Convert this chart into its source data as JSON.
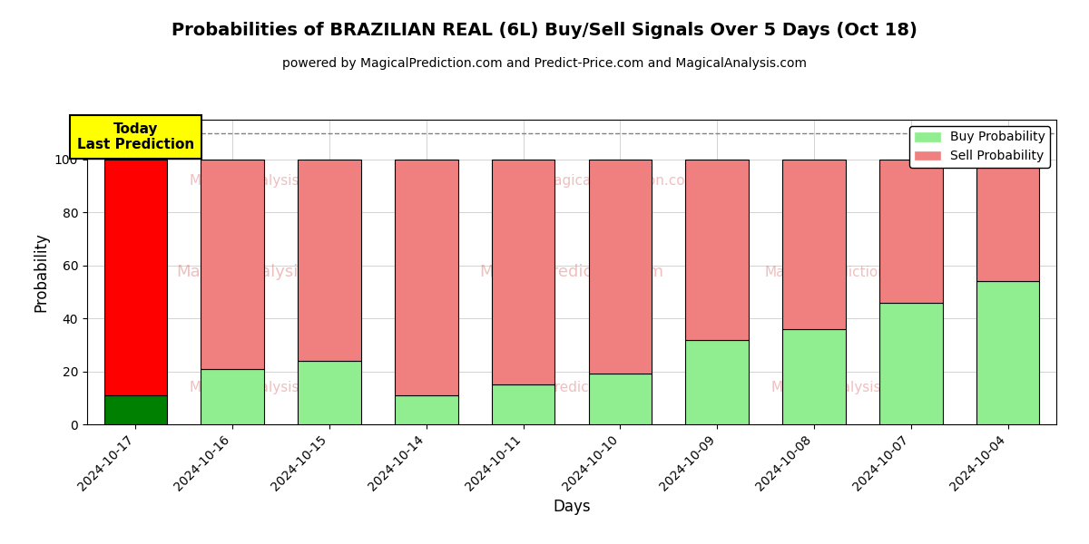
{
  "title": "Probabilities of BRAZILIAN REAL (6L) Buy/Sell Signals Over 5 Days (Oct 18)",
  "subtitle": "powered by MagicalPrediction.com and Predict-Price.com and MagicalAnalysis.com",
  "xlabel": "Days",
  "ylabel": "Probability",
  "dates": [
    "2024-10-17",
    "2024-10-16",
    "2024-10-15",
    "2024-10-14",
    "2024-10-11",
    "2024-10-10",
    "2024-10-09",
    "2024-10-08",
    "2024-10-07",
    "2024-10-04"
  ],
  "buy_values": [
    11,
    21,
    24,
    11,
    15,
    19,
    32,
    36,
    46,
    54
  ],
  "sell_values": [
    89,
    79,
    76,
    89,
    85,
    81,
    68,
    64,
    54,
    46
  ],
  "today_buy_color": "#008000",
  "today_sell_color": "#FF0000",
  "buy_color": "#90EE90",
  "sell_color": "#F08080",
  "today_label_bg": "#FFFF00",
  "today_label_text": "Today\nLast Prediction",
  "legend_buy": "Buy Probability",
  "legend_sell": "Sell Probability",
  "ylim": [
    0,
    115
  ],
  "yticks": [
    0,
    20,
    40,
    60,
    80,
    100
  ],
  "dashed_line_y": 110,
  "bar_edgecolor": "#000000",
  "bar_width": 0.65
}
